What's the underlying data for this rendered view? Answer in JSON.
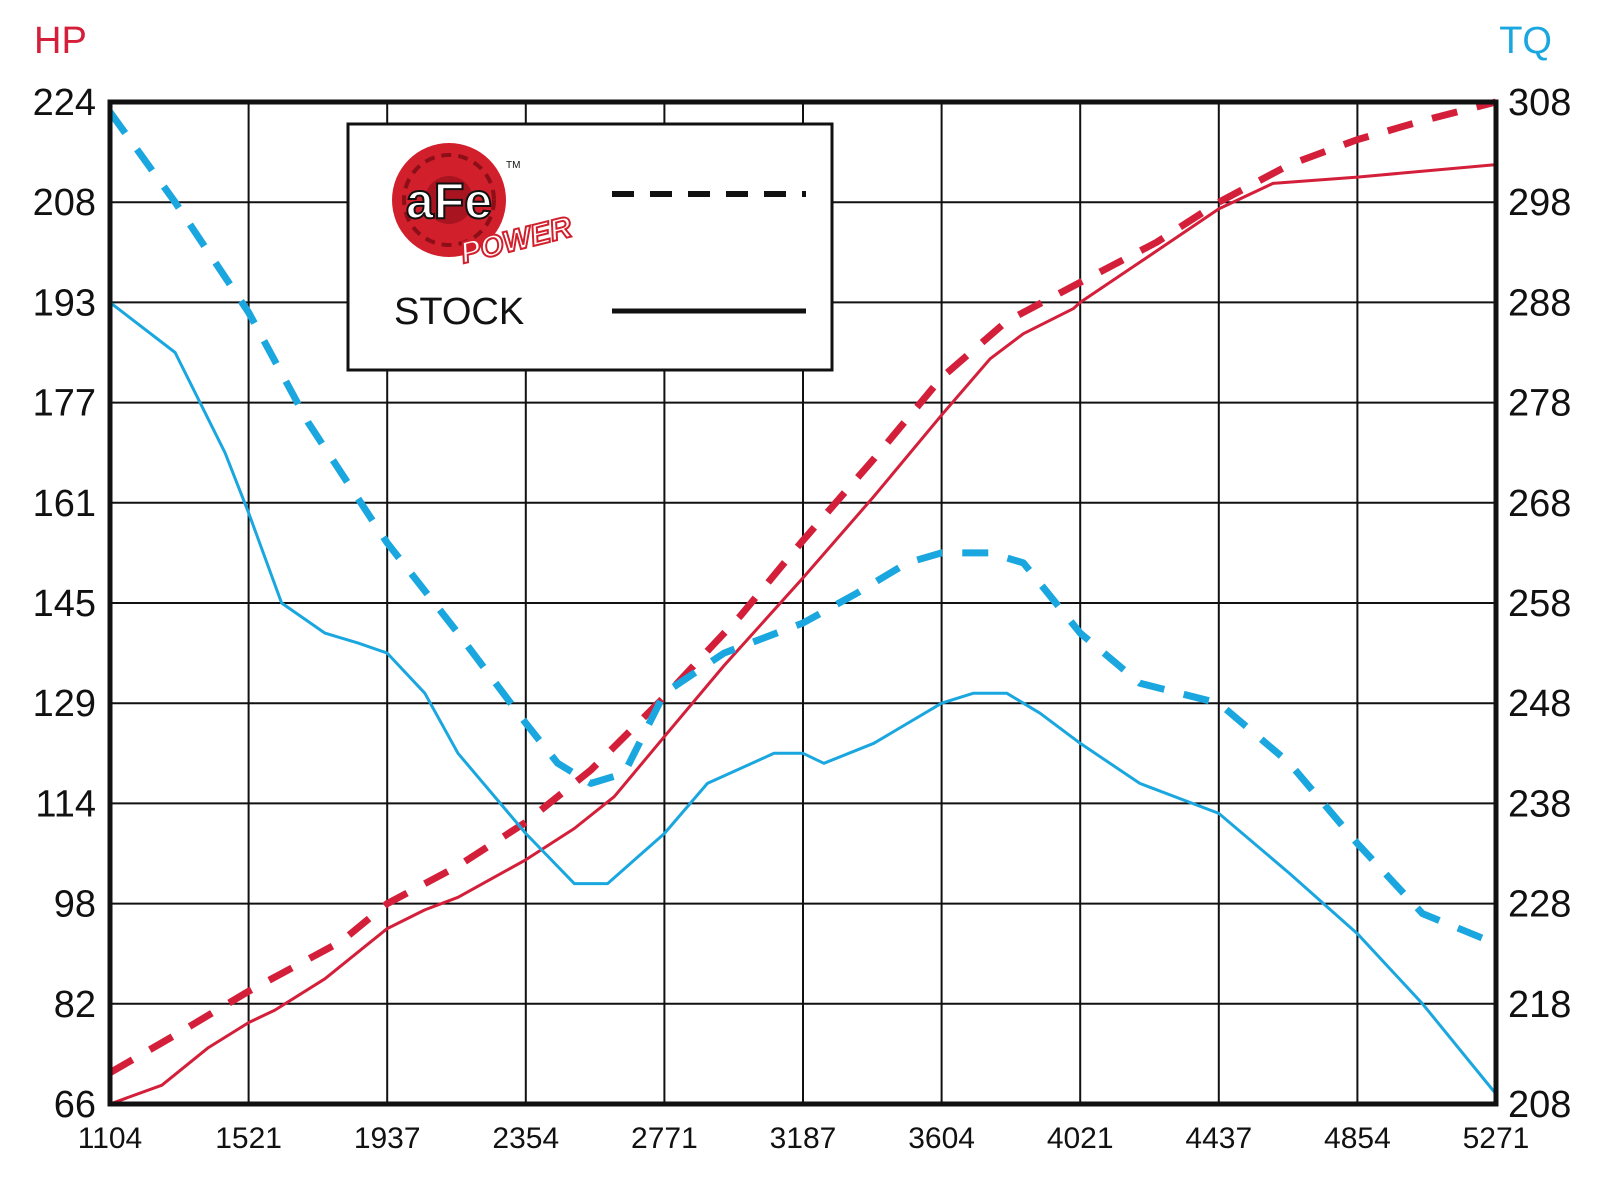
{
  "chart_data": {
    "type": "line",
    "y_left_label": "HP",
    "y_right_label": "TQ",
    "colors": {
      "hp": "#d41f3a",
      "tq": "#1aa7df",
      "frame": "#111111",
      "grid": "#111111"
    },
    "x_ticks": [
      1104,
      1521,
      1937,
      2354,
      2771,
      3187,
      3604,
      4021,
      4437,
      4854,
      5271
    ],
    "y_left_ticks": [
      66,
      82,
      98,
      114,
      129,
      145,
      161,
      177,
      193,
      208,
      224
    ],
    "y_right_ticks": [
      208,
      218,
      228,
      238,
      248,
      258,
      268,
      278,
      288,
      298,
      308
    ],
    "xlim": [
      1104,
      5271
    ],
    "ylim_left": [
      66,
      224
    ],
    "ylim_right": [
      208,
      308
    ],
    "legend": {
      "position": "top-left",
      "entries": [
        {
          "label": "aFe POWER",
          "style": "dashed",
          "logo": true
        },
        {
          "label": "STOCK",
          "style": "solid",
          "logo": false
        }
      ]
    },
    "logo": {
      "text": "aFe",
      "subtext": "POWER",
      "tm": "TM"
    },
    "series": [
      {
        "name": "aFe POWER",
        "metric": "HP",
        "axis": "left",
        "style": "dashed",
        "x": [
          1104,
          1300,
          1521,
          1800,
          1937,
          2150,
          2354,
          2550,
          2771,
          3000,
          3187,
          3400,
          3604,
          3800,
          4021,
          4250,
          4437,
          4650,
          4854,
          5050,
          5271
        ],
        "y": [
          71,
          77,
          84,
          92,
          98,
          104,
          111,
          119,
          130,
          143,
          155,
          168,
          181,
          190,
          196,
          202,
          208,
          214,
          218,
          221,
          224
        ]
      },
      {
        "name": "STOCK",
        "metric": "HP",
        "axis": "left",
        "style": "solid",
        "x": [
          1104,
          1260,
          1400,
          1521,
          1600,
          1750,
          1890,
          1937,
          2050,
          2150,
          2354,
          2500,
          2620,
          2771,
          2950,
          3187,
          3400,
          3604,
          3750,
          3850,
          4000,
          4021,
          4200,
          4437,
          4600,
          4854,
          5271
        ],
        "y": [
          66,
          69,
          75,
          79,
          81,
          86,
          92,
          94,
          97,
          99,
          105,
          110,
          115,
          124,
          135,
          149,
          162,
          175,
          184,
          188,
          192,
          193,
          199,
          207,
          211,
          212,
          214
        ]
      },
      {
        "name": "aFe POWER",
        "metric": "TQ",
        "axis": "right",
        "style": "dashed",
        "x": [
          1104,
          1300,
          1521,
          1700,
          1937,
          2150,
          2354,
          2450,
          2550,
          2650,
          2771,
          2950,
          3187,
          3350,
          3500,
          3604,
          3750,
          3850,
          4021,
          4200,
          4437,
          4650,
          4854,
          5050,
          5271
        ],
        "y": [
          307,
          298,
          287,
          276,
          264,
          255,
          246,
          242,
          240,
          241,
          249,
          253,
          256,
          259,
          262,
          263,
          263,
          262,
          255,
          250,
          248,
          242,
          234,
          227,
          224
        ]
      },
      {
        "name": "STOCK",
        "metric": "TQ",
        "axis": "right",
        "style": "solid",
        "x": [
          1104,
          1300,
          1450,
          1521,
          1620,
          1750,
          1850,
          1937,
          2050,
          2150,
          2354,
          2500,
          2600,
          2771,
          2900,
          3100,
          3187,
          3250,
          3400,
          3604,
          3700,
          3800,
          3900,
          4021,
          4200,
          4437,
          4650,
          4854,
          5050,
          5271
        ],
        "y": [
          288,
          283,
          273,
          267,
          258,
          255,
          254,
          253,
          249,
          243,
          235,
          230,
          230,
          235,
          240,
          243,
          243,
          242,
          244,
          248,
          249,
          249,
          247,
          244,
          240,
          237,
          231,
          225,
          218,
          209
        ]
      }
    ]
  }
}
